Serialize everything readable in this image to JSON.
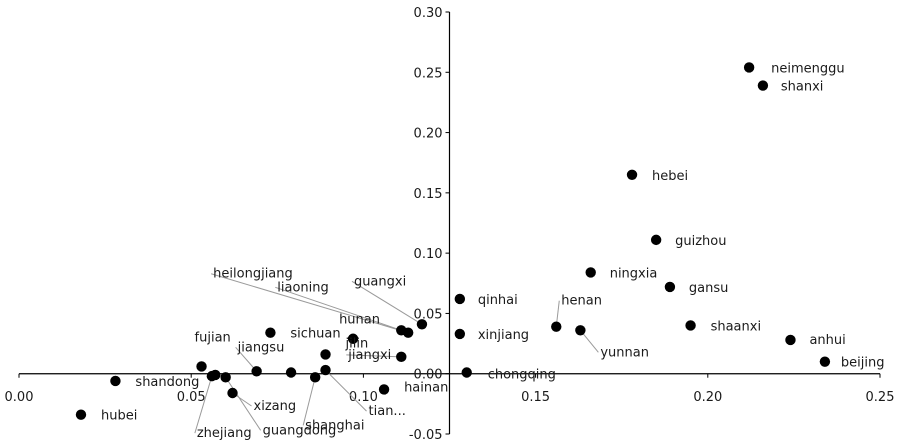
{
  "chart_data": {
    "type": "scatter",
    "title": "",
    "xlabel": "",
    "ylabel": "",
    "xlim": [
      0.0,
      0.25
    ],
    "ylim": [
      -0.05,
      0.3
    ],
    "x_ticks": [
      "0.00",
      "0.05",
      "0.10",
      "0.15",
      "0.20",
      "0.25"
    ],
    "y_ticks": [
      "-0.05",
      "0.00",
      "0.05",
      "0.10",
      "0.15",
      "0.20",
      "0.25",
      "0.30"
    ],
    "grid": false,
    "legend": "none",
    "marker_color": "#000000",
    "points": [
      {
        "name": "neimenggu",
        "x": 0.212,
        "y": 0.254
      },
      {
        "name": "shanxi",
        "x": 0.216,
        "y": 0.239
      },
      {
        "name": "hebei",
        "x": 0.178,
        "y": 0.165
      },
      {
        "name": "guizhou",
        "x": 0.185,
        "y": 0.111
      },
      {
        "name": "ningxia",
        "x": 0.166,
        "y": 0.084
      },
      {
        "name": "gansu",
        "x": 0.189,
        "y": 0.072
      },
      {
        "name": "qinhai",
        "x": 0.128,
        "y": 0.062
      },
      {
        "name": "henan",
        "x": 0.156,
        "y": 0.039
      },
      {
        "name": "xinjiang",
        "x": 0.128,
        "y": 0.033
      },
      {
        "name": "yunnan",
        "x": 0.163,
        "y": 0.036
      },
      {
        "name": "shaanxi",
        "x": 0.195,
        "y": 0.04
      },
      {
        "name": "anhui",
        "x": 0.224,
        "y": 0.028
      },
      {
        "name": "beijing",
        "x": 0.234,
        "y": 0.01
      },
      {
        "name": "chongqing",
        "x": 0.13,
        "y": 0.001
      },
      {
        "name": "guangxi",
        "x": 0.117,
        "y": 0.041
      },
      {
        "name": "heilongjiang",
        "x": 0.113,
        "y": 0.034
      },
      {
        "name": "liaoning",
        "x": 0.111,
        "y": 0.036
      },
      {
        "name": "hunan",
        "x": 0.097,
        "y": 0.029
      },
      {
        "name": "jiangxi",
        "x": 0.111,
        "y": 0.014
      },
      {
        "name": "sichuan",
        "x": 0.073,
        "y": 0.034
      },
      {
        "name": "jilin",
        "x": 0.089,
        "y": 0.016
      },
      {
        "name": "fujian",
        "x": 0.053,
        "y": 0.006
      },
      {
        "name": "jiangsu",
        "x": 0.069,
        "y": 0.002
      },
      {
        "name": "shandong",
        "x": 0.028,
        "y": -0.006
      },
      {
        "name": "hubei",
        "x": 0.018,
        "y": -0.034
      },
      {
        "name": "xizang",
        "x": 0.062,
        "y": -0.016
      },
      {
        "name": "zhejiang",
        "x": 0.056,
        "y": -0.002
      },
      {
        "name": "guangdong",
        "x": 0.06,
        "y": -0.003
      },
      {
        "name": "shanghai",
        "x": 0.086,
        "y": -0.003
      },
      {
        "name": "hainan",
        "x": 0.106,
        "y": -0.013
      },
      {
        "name": "tian...",
        "x": 0.089,
        "y": 0.003
      },
      {
        "name": "",
        "x": 0.057,
        "y": -0.001
      },
      {
        "name": "",
        "x": 0.079,
        "y": 0.001
      }
    ]
  }
}
